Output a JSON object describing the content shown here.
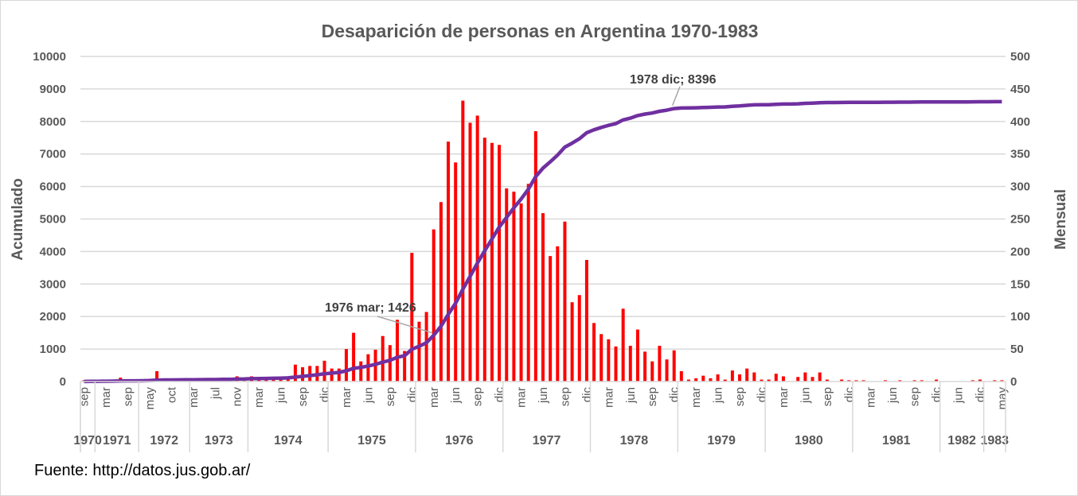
{
  "chart_data": {
    "type": "bar+line",
    "title": "Desaparición de personas en Argentina 1970-1983",
    "ylabel_left": "Acumulado",
    "ylabel_right": "Mensual",
    "ylim_left": [
      0,
      10000
    ],
    "ylim_right": [
      0,
      500
    ],
    "yticks_left": [
      "0",
      "1000",
      "2000",
      "3000",
      "4000",
      "5000",
      "6000",
      "7000",
      "8000",
      "9000",
      "10000"
    ],
    "yticks_right": [
      "0",
      "50",
      "100",
      "150",
      "200",
      "250",
      "300",
      "350",
      "400",
      "450",
      "500"
    ],
    "grid": true,
    "legend": "none",
    "categories": [
      "sep",
      "",
      "",
      "mar",
      "",
      "",
      "sep",
      "",
      "",
      "may",
      "",
      "",
      "oct",
      "",
      "",
      "mar",
      "",
      "",
      "jul",
      "",
      "",
      "nov",
      "",
      "",
      "mar",
      "",
      "",
      "jun",
      "",
      "",
      "sep",
      "",
      "",
      "dic",
      "",
      "",
      "mar",
      "",
      "",
      "jun",
      "",
      "",
      "sep",
      "",
      "",
      "dic",
      "",
      "",
      "mar",
      "",
      "",
      "jun",
      "",
      "",
      "sep",
      "",
      "",
      "dic",
      "",
      "",
      "mar",
      "",
      "",
      "jun",
      "",
      "",
      "sep",
      "",
      "",
      "dic",
      "",
      "",
      "mar",
      "",
      "",
      "jun",
      "",
      "",
      "sep",
      "",
      "",
      "dic",
      "",
      "",
      "mar",
      "",
      "",
      "jun",
      "",
      "",
      "sep",
      "",
      "",
      "dic",
      "",
      "",
      "mar",
      "",
      "",
      "jun",
      "",
      "",
      "sep",
      "",
      "",
      "dic",
      "",
      "",
      "mar",
      "",
      "",
      "jun",
      "",
      "",
      "sep",
      "",
      "",
      "dic",
      "",
      "",
      "jun",
      "",
      "",
      "dic",
      "",
      "",
      "may"
    ],
    "year_groups": [
      {
        "label": "1970",
        "start": 0,
        "end": 1
      },
      {
        "label": "1971",
        "start": 2,
        "end": 7
      },
      {
        "label": "1972",
        "start": 8,
        "end": 14
      },
      {
        "label": "1973",
        "start": 15,
        "end": 22
      },
      {
        "label": "1974",
        "start": 23,
        "end": 33
      },
      {
        "label": "1975",
        "start": 34,
        "end": 45
      },
      {
        "label": "1976",
        "start": 46,
        "end": 57
      },
      {
        "label": "1977",
        "start": 58,
        "end": 69
      },
      {
        "label": "1978",
        "start": 70,
        "end": 81
      },
      {
        "label": "1979",
        "start": 82,
        "end": 93
      },
      {
        "label": "1980",
        "start": 94,
        "end": 105
      },
      {
        "label": "1981",
        "start": 106,
        "end": 117
      },
      {
        "label": "1982",
        "start": 118,
        "end": 123
      },
      {
        "label": "1983",
        "start": 124,
        "end": 126
      }
    ],
    "series": [
      {
        "name": "Mensual",
        "type": "bar",
        "axis": "right",
        "color": "#FF0000",
        "values": [
          2,
          3,
          2,
          2,
          3,
          6,
          3,
          2,
          2,
          4,
          16,
          3,
          2,
          2,
          2,
          2,
          2,
          2,
          2,
          3,
          3,
          8,
          3,
          8,
          5,
          4,
          4,
          5,
          7,
          26,
          22,
          24,
          24,
          32,
          20,
          20,
          50,
          75,
          31,
          42,
          49,
          70,
          56,
          95,
          47,
          198,
          92,
          107,
          234,
          276,
          369,
          337,
          432,
          398,
          409,
          375,
          367,
          364,
          297,
          292,
          274,
          304,
          385,
          259,
          193,
          208,
          246,
          122,
          133,
          187,
          90,
          73,
          65,
          54,
          112,
          55,
          80,
          46,
          31,
          55,
          34,
          48,
          16,
          3,
          5,
          9,
          5,
          11,
          3,
          17,
          11,
          20,
          14,
          3,
          3,
          12,
          8,
          0,
          7,
          14,
          7,
          14,
          3,
          0,
          3,
          2,
          2,
          2,
          0,
          0,
          2,
          0,
          2,
          0,
          2,
          2,
          0,
          3,
          0,
          0,
          0,
          0,
          2,
          3,
          0,
          2,
          2
        ]
      },
      {
        "name": "Acumulado",
        "type": "line",
        "axis": "left",
        "color": "#7030A0",
        "values": [
          2,
          5,
          7,
          9,
          12,
          18,
          21,
          23,
          25,
          29,
          45,
          48,
          50,
          52,
          54,
          56,
          58,
          60,
          62,
          65,
          68,
          76,
          79,
          87,
          92,
          96,
          100,
          105,
          112,
          138,
          160,
          184,
          208,
          240,
          260,
          280,
          330,
          405,
          436,
          478,
          527,
          597,
          653,
          748,
          795,
          993,
          1085,
          1192,
          1426,
          1702,
          2071,
          2408,
          2840,
          3238,
          3647,
          4022,
          4389,
          4753,
          5050,
          5342,
          5616,
          5920,
          6305,
          6564,
          6757,
          6965,
          7211,
          7333,
          7466,
          7653,
          7743,
          7816,
          7881,
          7935,
          8047,
          8102,
          8182,
          8228,
          8259,
          8314,
          8348,
          8396,
          8412,
          8415,
          8420,
          8429,
          8434,
          8445,
          8448,
          8465,
          8476,
          8496,
          8510,
          8513,
          8516,
          8528,
          8536,
          8536,
          8543,
          8557,
          8564,
          8578,
          8581,
          8581,
          8584,
          8586,
          8588,
          8590,
          8590,
          8590,
          8592,
          8592,
          8594,
          8594,
          8596,
          8598,
          8598,
          8601,
          8601,
          8601,
          8601,
          8601,
          8603,
          8606,
          8606,
          8608,
          8610
        ]
      }
    ],
    "annotations": [
      {
        "index": 48,
        "text": "1976 mar; 1426"
      },
      {
        "index": 81,
        "text": "1978 dic; 8396"
      }
    ]
  },
  "source": "Fuente: http://datos.jus.gob.ar/",
  "colors": {
    "text": "#595959",
    "grid": "#D9D9D9",
    "bar": "#FF0000",
    "line": "#7030A0"
  }
}
